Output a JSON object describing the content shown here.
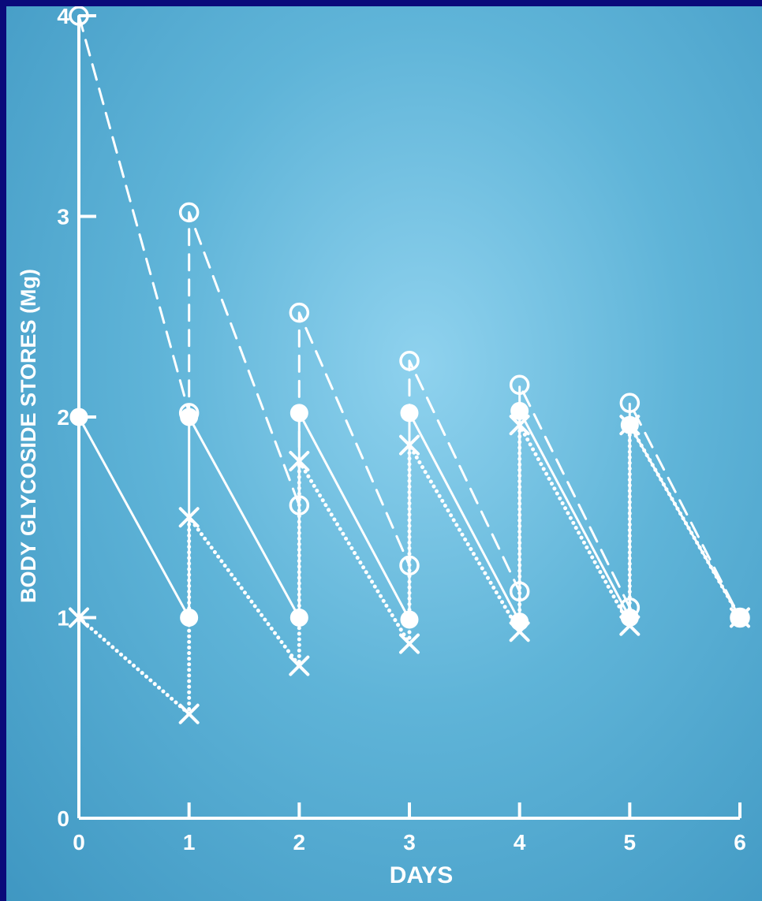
{
  "chart_data": {
    "type": "line",
    "ylabel": "BODY GLYCOSIDE STORES (Mg)",
    "xlabel": "DAYS",
    "xlim": [
      0,
      6
    ],
    "ylim": [
      0,
      4
    ],
    "x_ticks": [
      "0",
      "1",
      "2",
      "3",
      "4",
      "5",
      "6"
    ],
    "y_ticks": [
      "0",
      "1",
      "2",
      "3",
      "4"
    ],
    "grid": false,
    "colors": {
      "frame": "#0a0a7a",
      "background": "#5fb4d8",
      "ink": "#ffffff"
    },
    "series": [
      {
        "marker": "open-circle",
        "line": "dashed",
        "points": [
          [
            0,
            4
          ],
          [
            1,
            2.02
          ],
          [
            1,
            3.02
          ],
          [
            2,
            1.56
          ],
          [
            2,
            2.52
          ],
          [
            3,
            1.26
          ],
          [
            3,
            2.28
          ],
          [
            4,
            1.13
          ],
          [
            4,
            2.16
          ],
          [
            5,
            1.05
          ],
          [
            5,
            2.07
          ],
          [
            6,
            1.0
          ]
        ]
      },
      {
        "marker": "filled-circle",
        "line": "solid",
        "points": [
          [
            0,
            2.0
          ],
          [
            1,
            1.0
          ],
          [
            1,
            2.0
          ],
          [
            2,
            1.0
          ],
          [
            2,
            2.02
          ],
          [
            3,
            0.99
          ],
          [
            3,
            2.02
          ],
          [
            4,
            0.98
          ],
          [
            4,
            2.03
          ],
          [
            5,
            1.0
          ],
          [
            5,
            1.96
          ],
          [
            6,
            1.0
          ]
        ]
      },
      {
        "marker": "x",
        "line": "dotted",
        "points": [
          [
            0,
            1.0
          ],
          [
            1,
            0.52
          ],
          [
            1,
            1.5
          ],
          [
            2,
            0.76
          ],
          [
            2,
            1.78
          ],
          [
            3,
            0.87
          ],
          [
            3,
            1.86
          ],
          [
            4,
            0.93
          ],
          [
            4,
            1.96
          ],
          [
            5,
            0.96
          ],
          [
            5,
            1.96
          ],
          [
            6,
            1.0
          ]
        ]
      }
    ]
  }
}
